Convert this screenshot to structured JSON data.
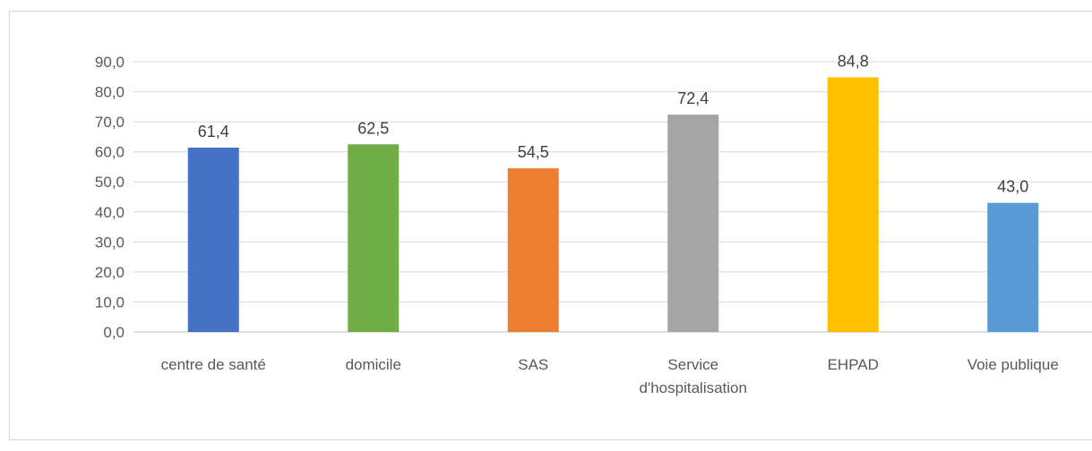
{
  "chart_data": {
    "type": "bar",
    "categories": [
      "centre de santé",
      "domicile",
      "SAS",
      "Service d'hospitalisation",
      "EHPAD",
      "Voie publique"
    ],
    "category_lines": [
      [
        "centre de santé"
      ],
      [
        "domicile"
      ],
      [
        "SAS"
      ],
      [
        "Service",
        "d'hospitalisation"
      ],
      [
        "EHPAD"
      ],
      [
        "Voie publique"
      ]
    ],
    "values": [
      61.4,
      62.5,
      54.5,
      72.4,
      84.8,
      43.0
    ],
    "data_labels": [
      "61,4",
      "62,5",
      "54,5",
      "72,4",
      "84,8",
      "43,0"
    ],
    "colors": [
      "#4472c4",
      "#70ad47",
      "#ed7d31",
      "#a5a5a5",
      "#ffc000",
      "#5b9bd5"
    ],
    "ylim": [
      0,
      90
    ],
    "yticks": [
      0,
      10,
      20,
      30,
      40,
      50,
      60,
      70,
      80,
      90
    ],
    "ytick_labels": [
      "0,0",
      "10,0",
      "20,0",
      "30,0",
      "40,0",
      "50,0",
      "60,0",
      "70,0",
      "80,0",
      "90,0"
    ],
    "grid": true,
    "legend": "none",
    "title": "",
    "xlabel": "",
    "ylabel": ""
  }
}
